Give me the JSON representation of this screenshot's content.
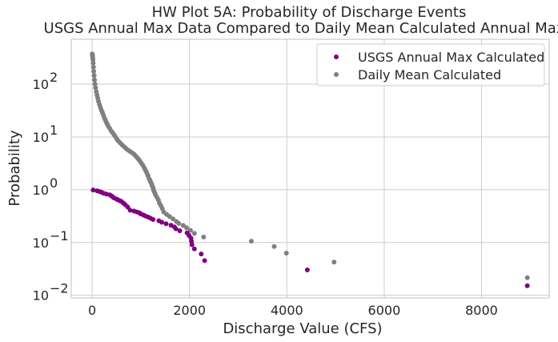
{
  "chart_data": {
    "type": "scatter",
    "title": [
      "HW Plot 5A: Probability of Discharge Events",
      "USGS Annual Max Data Compared to Daily Mean Calculated Annual Max"
    ],
    "xlabel": "Discharge Value (CFS)",
    "ylabel": "Probability",
    "xlim": [
      -430,
      9390
    ],
    "ylim_log10": [
      -2.05,
      2.85
    ],
    "y_scale": "log",
    "grid": true,
    "legend_position": "top-right",
    "x_ticks": [
      {
        "value": 0,
        "label": "0"
      },
      {
        "value": 2000,
        "label": "2000"
      },
      {
        "value": 4000,
        "label": "4000"
      },
      {
        "value": 6000,
        "label": "6000"
      },
      {
        "value": 8000,
        "label": "8000"
      }
    ],
    "y_ticks": [
      {
        "exp": -2,
        "base": "10",
        "sup": "−2"
      },
      {
        "exp": -1,
        "base": "10",
        "sup": "−1"
      },
      {
        "exp": 0,
        "base": "10",
        "sup": "0"
      },
      {
        "exp": 1,
        "base": "10",
        "sup": "1"
      },
      {
        "exp": 2,
        "base": "10",
        "sup": "2"
      }
    ],
    "series": [
      {
        "name": "Daily Mean Calculated",
        "color": "#808080",
        "marker_size": 5,
        "points": [
          [
            8940,
            0.0215
          ],
          [
            4970,
            0.0425
          ],
          [
            3990,
            0.063
          ],
          [
            3740,
            0.084
          ],
          [
            3270,
            0.106
          ],
          [
            2290,
            0.127
          ],
          [
            2100,
            0.149
          ],
          [
            2020,
            0.17
          ],
          [
            1940,
            0.19
          ],
          [
            1870,
            0.21
          ],
          [
            1780,
            0.23
          ],
          [
            1730,
            0.25
          ],
          [
            1660,
            0.28
          ],
          [
            1590,
            0.31
          ],
          [
            1530,
            0.34
          ],
          [
            1470,
            0.38
          ],
          [
            1440,
            0.44
          ],
          [
            1410,
            0.5
          ],
          [
            1380,
            0.56
          ],
          [
            1360,
            0.64
          ],
          [
            1330,
            0.72
          ],
          [
            1300,
            0.8
          ],
          [
            1290,
            0.86
          ],
          [
            1270,
            0.93
          ],
          [
            1260,
            1.0
          ],
          [
            1250,
            1.1
          ],
          [
            1230,
            1.2
          ],
          [
            1220,
            1.3
          ],
          [
            1200,
            1.4
          ],
          [
            1190,
            1.5
          ],
          [
            1170,
            1.6
          ],
          [
            1150,
            1.8
          ],
          [
            1130,
            2.0
          ],
          [
            1110,
            2.2
          ],
          [
            1090,
            2.4
          ],
          [
            1070,
            2.6
          ],
          [
            1040,
            2.9
          ],
          [
            1010,
            3.2
          ],
          [
            980,
            3.5
          ],
          [
            950,
            3.8
          ],
          [
            920,
            4.1
          ],
          [
            890,
            4.4
          ],
          [
            860,
            4.7
          ],
          [
            820,
            5.0
          ],
          [
            780,
            5.3
          ],
          [
            740,
            5.6
          ],
          [
            700,
            6.0
          ],
          [
            660,
            6.5
          ],
          [
            620,
            7.0
          ],
          [
            580,
            7.6
          ],
          [
            540,
            8.3
          ],
          [
            510,
            9.0
          ],
          [
            480,
            10
          ],
          [
            450,
            11
          ],
          [
            420,
            12
          ],
          [
            390,
            13
          ],
          [
            360,
            14.5
          ],
          [
            330,
            16
          ],
          [
            310,
            17.5
          ],
          [
            290,
            19
          ],
          [
            270,
            21
          ],
          [
            250,
            23
          ],
          [
            230,
            26
          ],
          [
            210,
            29
          ],
          [
            190,
            32
          ],
          [
            170,
            36
          ],
          [
            150,
            41
          ],
          [
            130,
            47
          ],
          [
            115,
            54
          ],
          [
            100,
            62
          ],
          [
            85,
            72
          ],
          [
            70,
            85
          ],
          [
            58,
            100
          ],
          [
            48,
            120
          ],
          [
            40,
            145
          ],
          [
            32,
            175
          ],
          [
            26,
            210
          ],
          [
            20,
            250
          ],
          [
            15,
            290
          ],
          [
            11,
            320
          ],
          [
            7,
            345
          ],
          [
            4,
            360
          ],
          [
            2,
            372
          ]
        ]
      },
      {
        "name": "USGS Annual Max Calculated",
        "color": "#800080",
        "marker_size": 5,
        "points": [
          [
            8940,
            0.0152
          ],
          [
            4420,
            0.0303
          ],
          [
            2310,
            0.0455
          ],
          [
            2240,
            0.0606
          ],
          [
            2100,
            0.0758
          ],
          [
            2050,
            0.091
          ],
          [
            2040,
            0.106
          ],
          [
            2030,
            0.121
          ],
          [
            1990,
            0.136
          ],
          [
            1950,
            0.152
          ],
          [
            1800,
            0.167
          ],
          [
            1720,
            0.182
          ],
          [
            1690,
            0.197
          ],
          [
            1620,
            0.212
          ],
          [
            1520,
            0.227
          ],
          [
            1430,
            0.242
          ],
          [
            1370,
            0.258
          ],
          [
            1250,
            0.273
          ],
          [
            1200,
            0.288
          ],
          [
            1150,
            0.303
          ],
          [
            1090,
            0.318
          ],
          [
            1050,
            0.333
          ],
          [
            1000,
            0.348
          ],
          [
            970,
            0.364
          ],
          [
            920,
            0.379
          ],
          [
            860,
            0.394
          ],
          [
            780,
            0.409
          ],
          [
            730,
            0.47
          ],
          [
            680,
            0.52
          ],
          [
            640,
            0.56
          ],
          [
            600,
            0.6
          ],
          [
            560,
            0.625
          ],
          [
            520,
            0.65
          ],
          [
            500,
            0.667
          ],
          [
            450,
            0.7
          ],
          [
            420,
            0.73
          ],
          [
            400,
            0.76
          ],
          [
            360,
            0.8
          ],
          [
            290,
            0.83
          ],
          [
            230,
            0.86
          ],
          [
            190,
            0.895
          ],
          [
            140,
            0.93
          ],
          [
            100,
            0.955
          ],
          [
            20,
            0.985
          ]
        ]
      }
    ],
    "legend": [
      {
        "label": "USGS Annual Max Calculated",
        "color": "#800080"
      },
      {
        "label": "Daily Mean Calculated",
        "color": "#808080"
      }
    ]
  }
}
